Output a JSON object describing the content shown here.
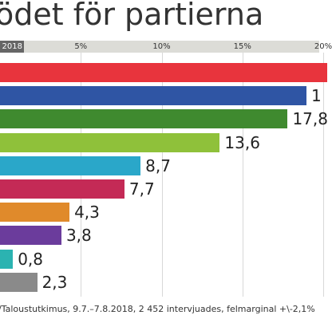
{
  "header": {
    "title": "ödet för partierna",
    "year_badge": "2018"
  },
  "chart_data": {
    "type": "bar",
    "orientation": "horizontal",
    "title": "ödet för partierna",
    "xlim": [
      0,
      20
    ],
    "ticks": [
      "5%",
      "10%",
      "15%",
      "20%"
    ],
    "tick_values": [
      5,
      10,
      15,
      20
    ],
    "grid": true,
    "bars": [
      {
        "label": "",
        "value": null,
        "color": "#e8343d"
      },
      {
        "label": "1",
        "value": null,
        "color": "#2f55a4"
      },
      {
        "label": "17,8",
        "value": 17.8,
        "color": "#3f8a2f"
      },
      {
        "label": "13,6",
        "value": 13.6,
        "color": "#8fc13a"
      },
      {
        "label": "8,7",
        "value": 8.7,
        "color": "#2aa7c9"
      },
      {
        "label": "7,7",
        "value": 7.7,
        "color": "#c42a56"
      },
      {
        "label": "4,3",
        "value": 4.3,
        "color": "#e08a2b"
      },
      {
        "label": "3,8",
        "value": 3.8,
        "color": "#6b3c9c"
      },
      {
        "label": "0,8",
        "value": 0.8,
        "color": "#2bb3b1"
      },
      {
        "label": "2,3",
        "value": 2.3,
        "color": "#8a8a8a"
      }
    ]
  },
  "footnote": "/Taloustutkimus, 9.7.–7.8.2018, 2 452 intervjuades, felmarginal +\\-2,1%"
}
